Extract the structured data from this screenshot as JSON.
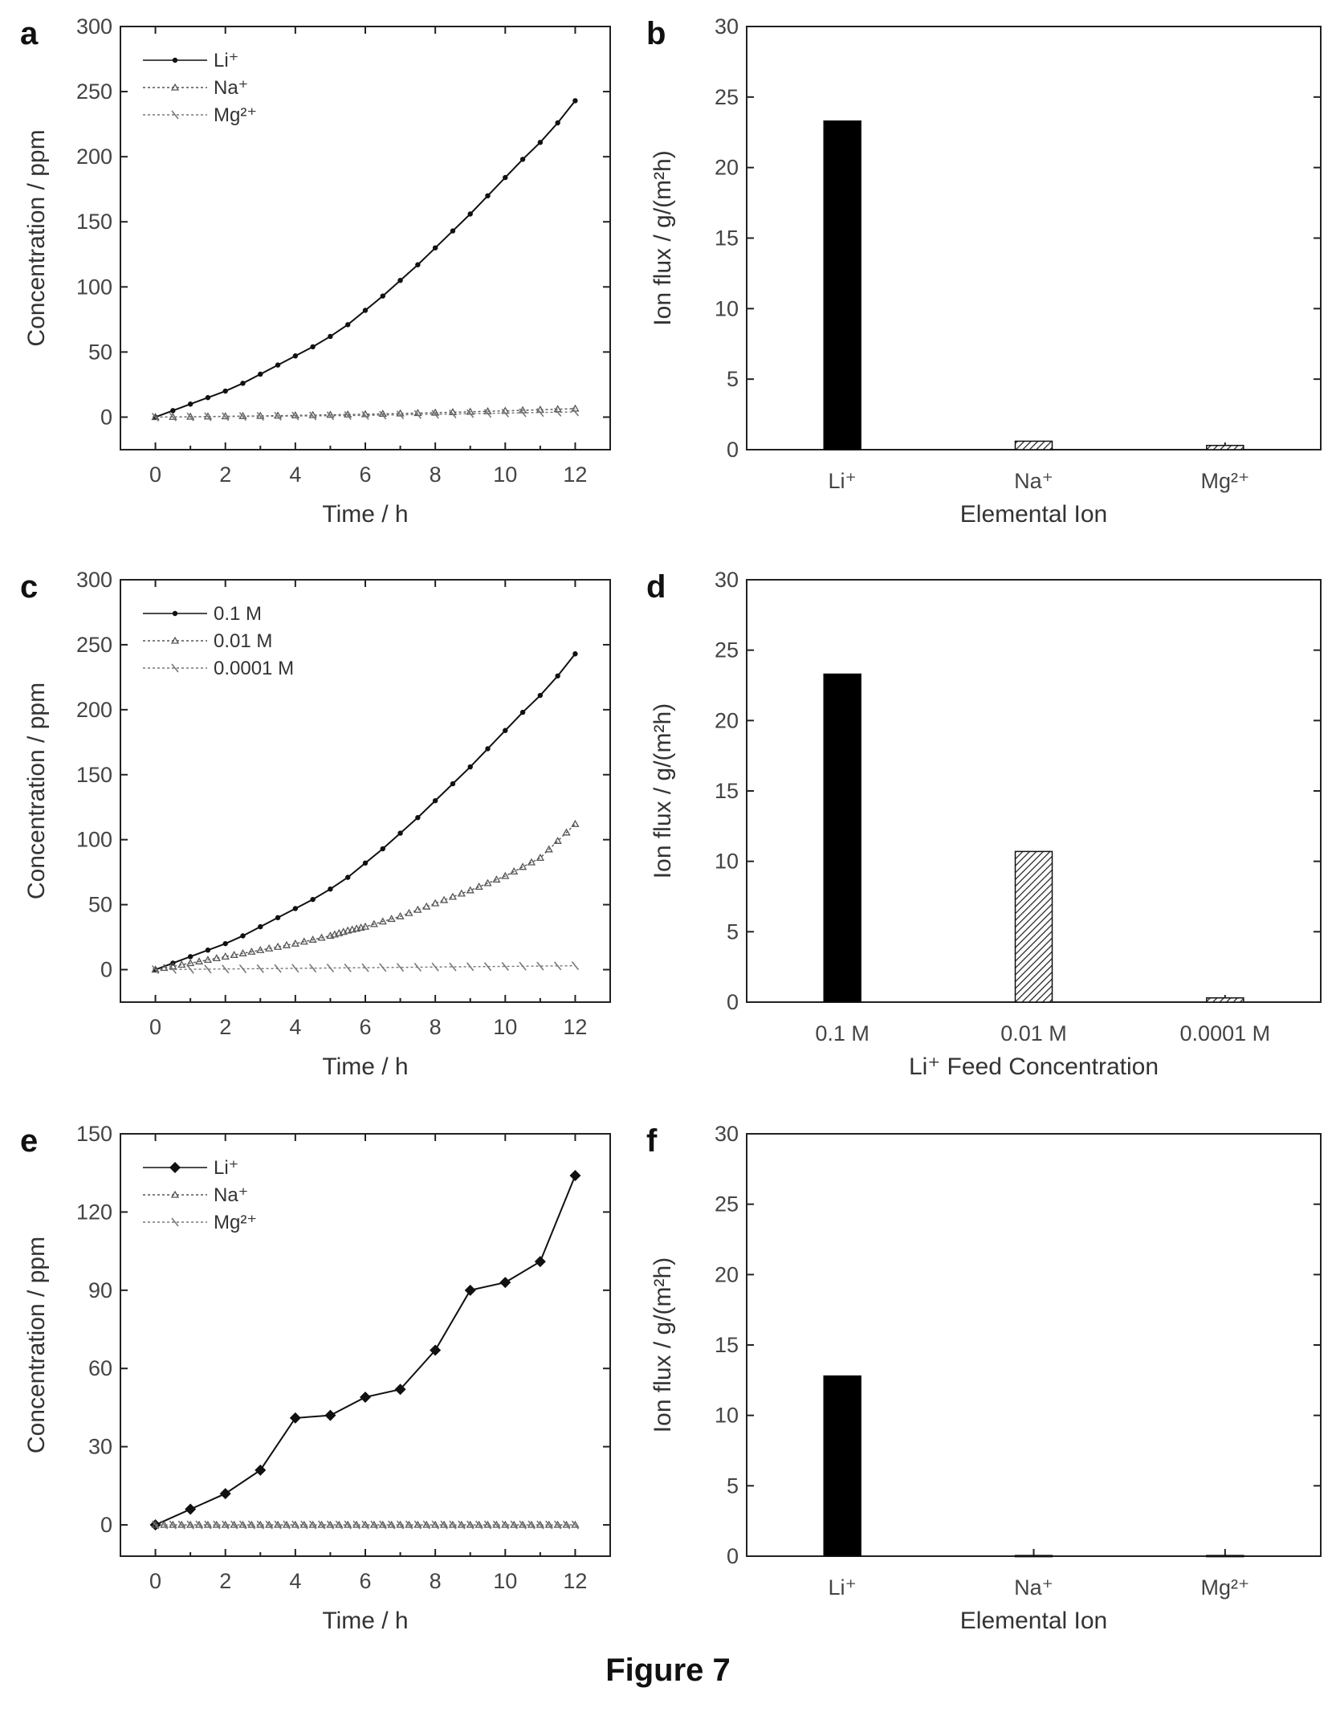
{
  "caption": "Figure 7",
  "chart_data": [
    {
      "panel": "a",
      "type": "line",
      "xlabel": "Time / h",
      "ylabel": "Concentration / ppm",
      "xlim": [
        -1,
        13
      ],
      "ylim": [
        -25,
        300
      ],
      "xticks": [
        0,
        2,
        4,
        6,
        8,
        10,
        12
      ],
      "yticks": [
        0,
        50,
        100,
        150,
        200,
        250,
        300
      ],
      "legend_position": "top-left",
      "series": [
        {
          "name": "Li⁺",
          "marker": "dot",
          "color": "#111111",
          "x": [
            0,
            0.5,
            1,
            1.5,
            2,
            2.5,
            3,
            3.5,
            4,
            4.5,
            5,
            5.5,
            6,
            6.5,
            7,
            7.5,
            8,
            8.5,
            9,
            9.5,
            10,
            10.5,
            11,
            11.5,
            12
          ],
          "y": [
            0,
            5,
            10,
            15,
            20,
            26,
            33,
            40,
            47,
            54,
            62,
            71,
            82,
            93,
            105,
            117,
            130,
            143,
            156,
            170,
            184,
            198,
            211,
            226,
            243
          ]
        },
        {
          "name": "Na⁺",
          "marker": "tri",
          "color": "#555555",
          "x": [
            0,
            2,
            4,
            6,
            8,
            10,
            12
          ],
          "y": [
            0,
            0.6,
            1.3,
            2.2,
            3.4,
            4.8,
            6.5
          ]
        },
        {
          "name": "Mg²⁺",
          "marker": "hatch",
          "color": "#777777",
          "x": [
            0,
            2,
            4,
            6,
            8,
            10,
            12
          ],
          "y": [
            0,
            0.4,
            0.8,
            1.3,
            2.2,
            3.1,
            4
          ]
        }
      ]
    },
    {
      "panel": "b",
      "type": "bar",
      "xlabel": "Elemental Ion",
      "ylabel": "Ion flux / g/(m²h)",
      "ylim": [
        0,
        30
      ],
      "yticks": [
        0,
        5,
        10,
        15,
        20,
        25,
        30
      ],
      "categories": [
        "Li⁺",
        "Na⁺",
        "Mg²⁺"
      ],
      "values": [
        23.3,
        0.6,
        0.3
      ],
      "fills": [
        "solid",
        "hatch",
        "hatch"
      ]
    },
    {
      "panel": "c",
      "type": "line",
      "xlabel": "Time / h",
      "ylabel": "Concentration / ppm",
      "xlim": [
        -1,
        13
      ],
      "ylim": [
        -25,
        300
      ],
      "xticks": [
        0,
        2,
        4,
        6,
        8,
        10,
        12
      ],
      "yticks": [
        0,
        50,
        100,
        150,
        200,
        250,
        300
      ],
      "legend_position": "top-left",
      "series": [
        {
          "name": "0.1      M",
          "marker": "dot",
          "color": "#111111",
          "x": [
            0,
            0.5,
            1,
            1.5,
            2,
            2.5,
            3,
            3.5,
            4,
            4.5,
            5,
            5.5,
            6,
            6.5,
            7,
            7.5,
            8,
            8.5,
            9,
            9.5,
            10,
            10.5,
            11,
            11.5,
            12
          ],
          "y": [
            0,
            5,
            10,
            15,
            20,
            26,
            33,
            40,
            47,
            54,
            62,
            71,
            82,
            93,
            105,
            117,
            130,
            143,
            156,
            170,
            184,
            198,
            211,
            226,
            243
          ]
        },
        {
          "name": "0.01     M",
          "marker": "tri",
          "color": "#555555",
          "x": [
            0,
            1,
            2,
            3,
            4,
            5,
            5.5,
            6,
            7,
            8,
            9,
            10,
            11,
            12
          ],
          "y": [
            0,
            5,
            10,
            15,
            20,
            26,
            30,
            33,
            41,
            51,
            61,
            72,
            86,
            112
          ]
        },
        {
          "name": "0.0001  M",
          "marker": "hatch",
          "color": "#777777",
          "x": [
            0,
            2,
            4,
            6,
            8,
            10,
            12
          ],
          "y": [
            0,
            0.5,
            1,
            1.5,
            2,
            2.5,
            3
          ]
        }
      ]
    },
    {
      "panel": "d",
      "type": "bar",
      "xlabel": "Li⁺ Feed Concentration",
      "ylabel": "Ion flux / g/(m²h)",
      "ylim": [
        0,
        30
      ],
      "yticks": [
        0,
        5,
        10,
        15,
        20,
        25,
        30
      ],
      "categories": [
        "0.1 M",
        "0.01 M",
        "0.0001 M"
      ],
      "values": [
        23.3,
        10.7,
        0.3
      ],
      "fills": [
        "solid",
        "hatch",
        "hatch"
      ]
    },
    {
      "panel": "e",
      "type": "line",
      "xlabel": "Time / h",
      "ylabel": "Concentration / ppm",
      "xlim": [
        -1,
        13
      ],
      "ylim": [
        -12,
        150
      ],
      "xticks": [
        0,
        2,
        4,
        6,
        8,
        10,
        12
      ],
      "yticks": [
        0,
        30,
        60,
        90,
        120,
        150
      ],
      "legend_position": "top-left",
      "series": [
        {
          "name": "Li⁺",
          "marker": "diamond",
          "color": "#111111",
          "x": [
            0,
            1,
            2,
            3,
            4,
            5,
            6,
            7,
            8,
            9,
            10,
            11,
            12
          ],
          "y": [
            0,
            6,
            12,
            21,
            41,
            42,
            49,
            52,
            67,
            90,
            93,
            101,
            134
          ]
        },
        {
          "name": "Na⁺",
          "marker": "tri",
          "color": "#555555",
          "x": [
            0,
            1,
            2,
            3,
            4,
            5,
            6,
            7,
            8,
            9,
            10,
            11,
            12
          ],
          "y": [
            0,
            0,
            0,
            0,
            0,
            0,
            0,
            0,
            0,
            0,
            0,
            0,
            0
          ]
        },
        {
          "name": "Mg²⁺",
          "marker": "hatch",
          "color": "#777777",
          "x": [
            0,
            1,
            2,
            3,
            4,
            5,
            6,
            7,
            8,
            9,
            10,
            11,
            12
          ],
          "y": [
            0,
            0,
            0,
            0,
            0,
            0,
            0,
            0,
            0,
            0,
            0,
            0,
            0
          ]
        }
      ]
    },
    {
      "panel": "f",
      "type": "bar",
      "xlabel": "Elemental Ion",
      "ylabel": "Ion flux / g/(m²h)",
      "ylim": [
        0,
        30
      ],
      "yticks": [
        0,
        5,
        10,
        15,
        20,
        25,
        30
      ],
      "categories": [
        "Li⁺",
        "Na⁺",
        "Mg²⁺"
      ],
      "values": [
        12.8,
        0.05,
        0.05
      ],
      "fills": [
        "solid",
        "hatch",
        "hatch"
      ]
    }
  ]
}
